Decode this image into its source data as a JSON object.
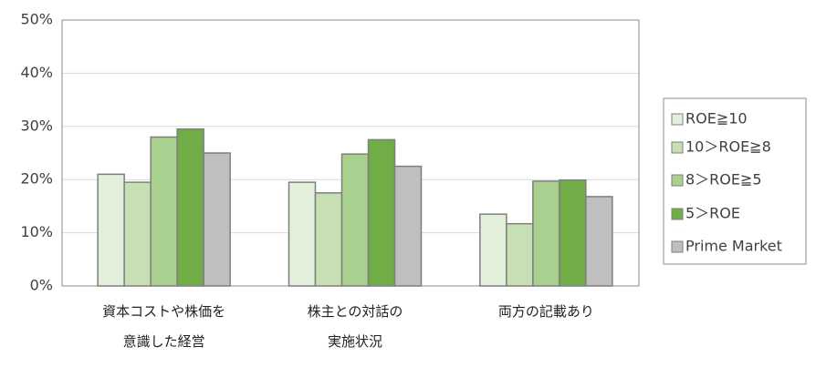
{
  "chart_data": {
    "type": "bar",
    "categories": [
      "資本コストや株価を\n意識した経営",
      "株主との対話の\n実施状況",
      "両方の記載あり"
    ],
    "series": [
      {
        "name": "ROE≧10",
        "color": "#e2efda",
        "values": [
          21,
          19.5,
          13.5
        ]
      },
      {
        "name": "10＞ROE≧8",
        "color": "#c6e0b4",
        "values": [
          19.5,
          17.5,
          11.7
        ]
      },
      {
        "name": "8＞ROE≧5",
        "color": "#a9d08e",
        "values": [
          28,
          24.8,
          19.7
        ]
      },
      {
        "name": "5＞ROE",
        "color": "#70ad47",
        "values": [
          29.5,
          27.5,
          19.9
        ]
      },
      {
        "name": "Prime Market",
        "color": "#bfbfbf",
        "values": [
          25,
          22.5,
          16.8
        ]
      }
    ],
    "ylim": [
      0,
      50
    ],
    "yticks": [
      {
        "value": 0,
        "label": "0%"
      },
      {
        "value": 10,
        "label": "10%"
      },
      {
        "value": 20,
        "label": "20%"
      },
      {
        "value": 30,
        "label": "30%"
      },
      {
        "value": 40,
        "label": "40%"
      },
      {
        "value": 50,
        "label": "50%"
      }
    ],
    "grid": true,
    "legend": "right"
  }
}
